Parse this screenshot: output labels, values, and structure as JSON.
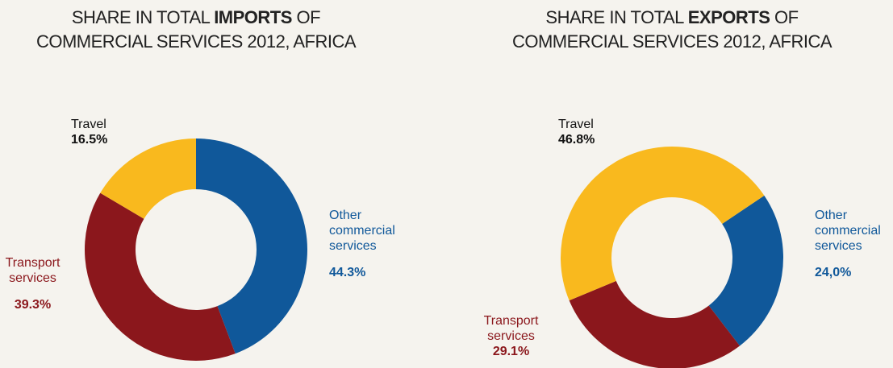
{
  "chart_data": [
    {
      "type": "donut",
      "title": [
        "SHARE IN TOTAL",
        "IMPORTS",
        "OF",
        "COMMERCIAL SERVICES 2012, AFRICA"
      ],
      "categories": [
        "Other commercial services",
        "Transport services",
        "Travel"
      ],
      "values": [
        44.3,
        39.3,
        16.5
      ],
      "value_labels": [
        "44.3%",
        "39.3%",
        "16.5%"
      ],
      "colors": [
        "#10589a",
        "#8b171c",
        "#f9b91e"
      ]
    },
    {
      "type": "donut",
      "title": [
        "SHARE IN TOTAL",
        "EXPORTS",
        "OF",
        "COMMERCIAL SERVICES 2012, AFRICA"
      ],
      "categories": [
        "Other commercial services",
        "Transport services",
        "Travel"
      ],
      "values": [
        24.0,
        29.1,
        46.8
      ],
      "value_labels": [
        "24,0%",
        "29.1%",
        "46.8%"
      ],
      "colors": [
        "#10589a",
        "#8b171c",
        "#f9b91e"
      ]
    }
  ]
}
